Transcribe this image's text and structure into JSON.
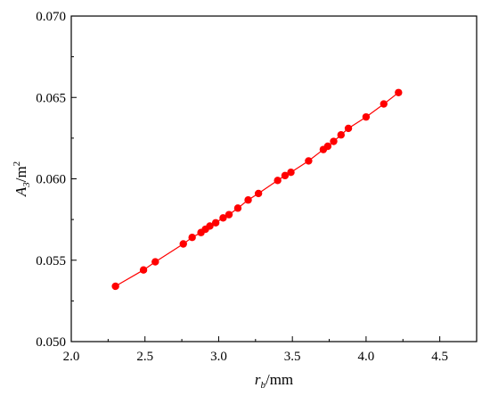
{
  "chart_data": {
    "type": "scatter",
    "title": "",
    "xlabel": {
      "main": "r",
      "sub": "b",
      "suffix": "/mm"
    },
    "ylabel": {
      "main": "A",
      "sub": "3",
      "suffix": "/m",
      "sup": "2"
    },
    "xlim": [
      2.0,
      4.75
    ],
    "ylim": [
      0.05,
      0.07
    ],
    "xticks": [
      "2.0",
      "2.5",
      "3.0",
      "3.5",
      "4.0",
      "4.5"
    ],
    "yticks": [
      "0.050",
      "0.055",
      "0.060",
      "0.065",
      "0.070"
    ],
    "grid": false,
    "legend": "none",
    "series": [
      {
        "color": "#ff0000",
        "marker": "circle",
        "line": true,
        "x": [
          2.3,
          2.49,
          2.57,
          2.76,
          2.82,
          2.88,
          2.91,
          2.94,
          2.98,
          3.03,
          3.07,
          3.13,
          3.2,
          3.27,
          3.4,
          3.45,
          3.49,
          3.61,
          3.71,
          3.74,
          3.78,
          3.83,
          3.88,
          4.0,
          4.12,
          4.22
        ],
        "y": [
          0.0534,
          0.0544,
          0.0549,
          0.056,
          0.0564,
          0.0567,
          0.0569,
          0.0571,
          0.0573,
          0.0576,
          0.0578,
          0.0582,
          0.0587,
          0.0591,
          0.0599,
          0.0602,
          0.0604,
          0.0611,
          0.0618,
          0.062,
          0.0623,
          0.0627,
          0.0631,
          0.0638,
          0.0646,
          0.0653
        ]
      }
    ]
  }
}
